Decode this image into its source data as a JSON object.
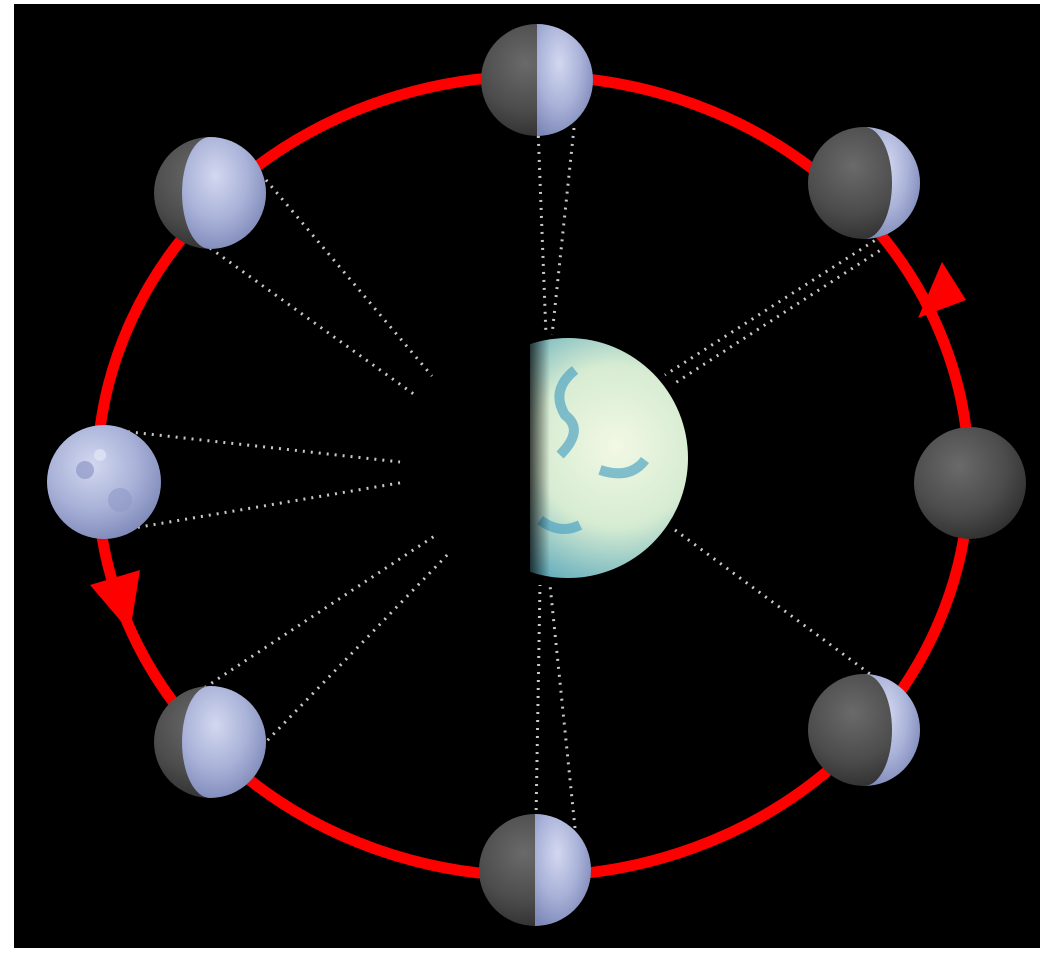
{
  "diagram": {
    "colors": {
      "background": "#000000",
      "frame": "#ffffff",
      "orbit": "#ff0000",
      "sight_lines": "#c8c8c8",
      "moon_lit": "#a9b2d8",
      "moon_dark": "#4a4a4a",
      "earth_ocean": "#2f8fb3",
      "earth_cloud": "#eef6df"
    },
    "earth": {
      "icon": "earth-half-lit-icon",
      "lit_side": "right"
    },
    "orbit": {
      "direction": "counterclockwise",
      "arrow_count": 2
    },
    "moons": [
      {
        "name": "moon-top",
        "phase": "first-quarter",
        "icon": "moon-first-quarter-icon"
      },
      {
        "name": "moon-top-right",
        "phase": "waxing-crescent",
        "icon": "moon-waxing-crescent-icon"
      },
      {
        "name": "moon-right",
        "phase": "new",
        "icon": "moon-new-icon"
      },
      {
        "name": "moon-bottom-right",
        "phase": "waxing-crescent",
        "icon": "moon-waxing-crescent-icon"
      },
      {
        "name": "moon-bottom",
        "phase": "first-quarter",
        "icon": "moon-first-quarter-icon"
      },
      {
        "name": "moon-bottom-left",
        "phase": "waxing-gibbous",
        "icon": "moon-waxing-gibbous-icon"
      },
      {
        "name": "moon-left",
        "phase": "full",
        "icon": "moon-full-icon"
      },
      {
        "name": "moon-top-left",
        "phase": "waxing-gibbous",
        "icon": "moon-waxing-gibbous-icon"
      }
    ]
  }
}
